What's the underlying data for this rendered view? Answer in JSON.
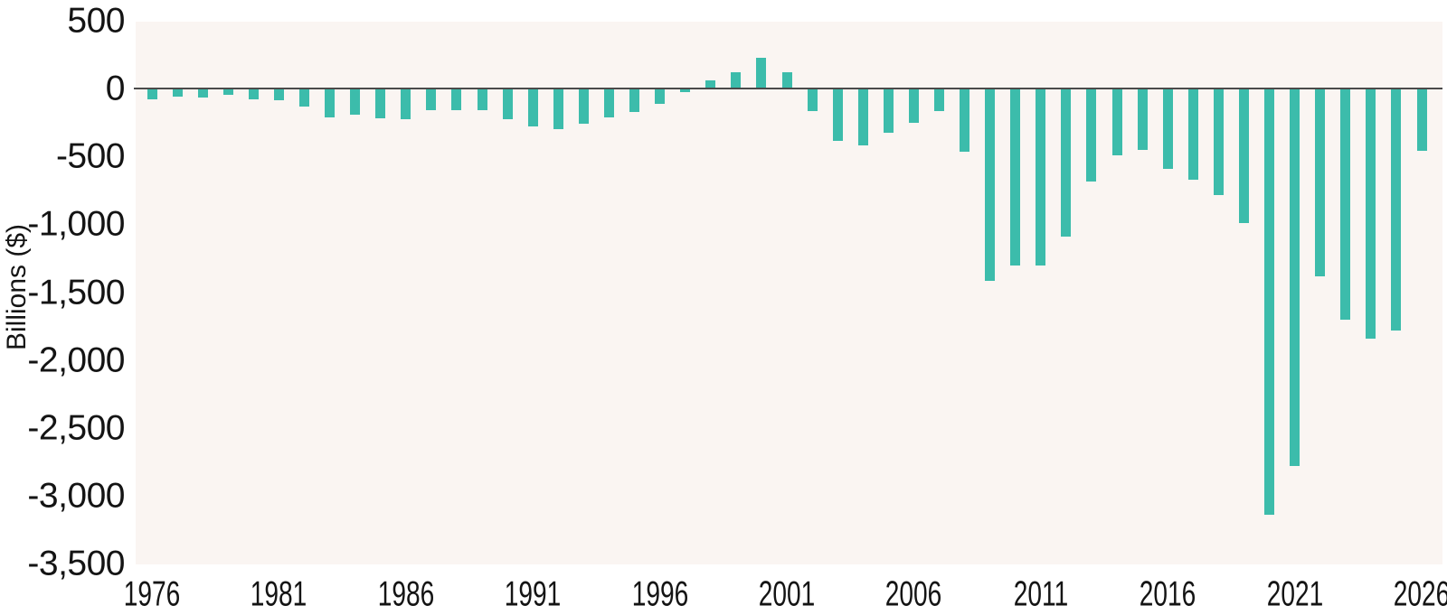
{
  "chart_data": {
    "type": "bar",
    "title": "",
    "xlabel": "",
    "ylabel": "Billions ($)",
    "x": [
      1976,
      1977,
      1978,
      1979,
      1980,
      1981,
      1982,
      1983,
      1984,
      1985,
      1986,
      1987,
      1988,
      1989,
      1990,
      1991,
      1992,
      1993,
      1994,
      1995,
      1996,
      1997,
      1998,
      1999,
      2000,
      2001,
      2002,
      2003,
      2004,
      2005,
      2006,
      2007,
      2008,
      2009,
      2010,
      2011,
      2012,
      2013,
      2014,
      2015,
      2016,
      2017,
      2018,
      2019,
      2020,
      2021,
      2022,
      2023,
      2024,
      2025,
      2026
    ],
    "values": [
      -73.7,
      -53.7,
      -59.2,
      -40.7,
      -73.8,
      -79.0,
      -128.0,
      -207.8,
      -185.4,
      -212.3,
      -221.2,
      -149.7,
      -155.2,
      -152.6,
      -221.0,
      -269.2,
      -290.3,
      -255.1,
      -203.2,
      -164.0,
      -107.4,
      -21.9,
      69.3,
      125.6,
      236.2,
      128.2,
      -157.8,
      -377.6,
      -412.7,
      -318.3,
      -248.2,
      -160.7,
      -458.6,
      -1412.7,
      -1294.4,
      -1299.6,
      -1087.0,
      -679.5,
      -484.6,
      -441.9,
      -584.7,
      -665.4,
      -779.0,
      -984.4,
      -3131.9,
      -2772.2,
      -1375.4,
      -1695.2,
      -1833.8,
      -1775.0,
      -455.0
    ],
    "ylim": [
      -3500,
      500
    ],
    "ytick_values": [
      500,
      0,
      -500,
      -1000,
      -1500,
      -2000,
      -2500,
      -3000,
      -3500
    ],
    "ytick_labels": [
      "500",
      "0",
      "-500",
      "-1,000",
      "-1,500",
      "-2,000",
      "-2,500",
      "-3,000",
      "-3,500"
    ],
    "xtick_values": [
      1976,
      1981,
      1986,
      1991,
      1996,
      2001,
      2006,
      2011,
      2016,
      2021,
      2026
    ],
    "xtick_labels": [
      "1976",
      "1981",
      "1986",
      "1991",
      "1996",
      "2001",
      "2006",
      "2011",
      "2016",
      "2021",
      "2026"
    ],
    "grid": false,
    "legend": "none",
    "colors": {
      "bar": "#3CBCAB",
      "plot_background": "#FAF5F2",
      "zero_line": "#4A4A4A",
      "text": "#141414",
      "page_background": "#FFFFFF"
    }
  }
}
